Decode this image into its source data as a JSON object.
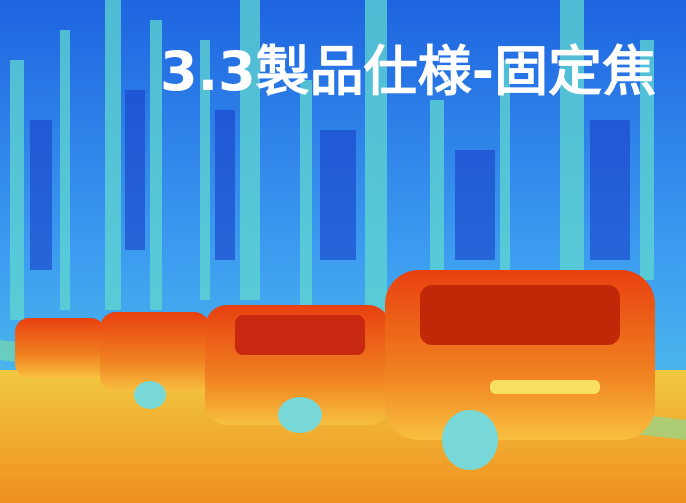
{
  "title": "3.3製品仕様-固定焦"
}
